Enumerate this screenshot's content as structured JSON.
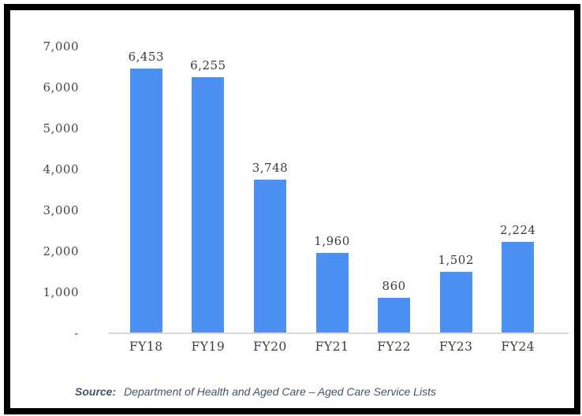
{
  "chart_data": {
    "type": "bar",
    "categories": [
      "FY18",
      "FY19",
      "FY20",
      "FY21",
      "FY22",
      "FY23",
      "FY24"
    ],
    "values": [
      6453,
      6255,
      3748,
      1960,
      860,
      1502,
      2224
    ],
    "value_labels": [
      "6,453",
      "6,255",
      "3,748",
      "1,960",
      "860",
      "1,502",
      "2,224"
    ],
    "title": "",
    "xlabel": "",
    "ylabel": "",
    "ylim": [
      0,
      7000
    ],
    "y_tick_step": 1000,
    "y_ticks": [
      {
        "value": 7000,
        "label": "7,000"
      },
      {
        "value": 6000,
        "label": "6,000"
      },
      {
        "value": 5000,
        "label": "5,000"
      },
      {
        "value": 4000,
        "label": "4,000"
      },
      {
        "value": 3000,
        "label": "3,000"
      },
      {
        "value": 2000,
        "label": "2,000"
      },
      {
        "value": 1000,
        "label": "1,000"
      },
      {
        "value": 0,
        "label": "-"
      }
    ],
    "grid": false,
    "legend": "none",
    "bar_color": "#4d90f4",
    "axis_line_color": "#d9d9d9",
    "tick_label_color": "#464646",
    "value_label_color": "#3b3b3b"
  },
  "frame": {
    "border_color": "#000000",
    "background_color": "#ffffff"
  },
  "source": {
    "prefix": "Source:",
    "text": "Department of Health and Aged Care – Aged Care Service Lists",
    "color": "#44546a"
  }
}
